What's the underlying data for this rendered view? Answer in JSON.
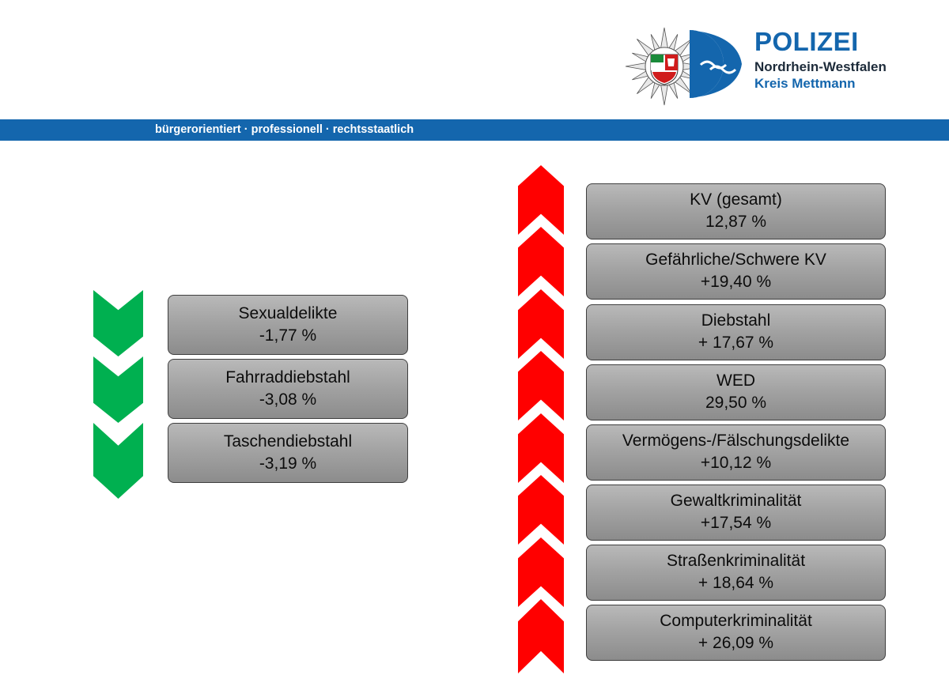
{
  "header": {
    "title": "POLIZEI",
    "subtitle_line1": "Nordrhein-Westfalen",
    "subtitle_line2": "Kreis Mettmann",
    "slogan": "bürgerorientiert · professionell · rechtsstaatlich",
    "logo_icon": "police-star-icon",
    "colors": {
      "brand_blue": "#1466ad",
      "decrease": "#00b050",
      "increase": "#ff0000"
    }
  },
  "decreases": [
    {
      "label": "Sexualdelikte",
      "value": "-1,77 %"
    },
    {
      "label": "Fahrraddiebstahl",
      "value": "-3,08 %"
    },
    {
      "label": "Taschendiebstahl",
      "value": "-3,19 %"
    }
  ],
  "increases": [
    {
      "label": "KV (gesamt)",
      "value": "12,87 %"
    },
    {
      "label": "Gefährliche/Schwere KV",
      "value": "+19,40 %"
    },
    {
      "label": "Diebstahl",
      "value": "+ 17,67 %"
    },
    {
      "label": "WED",
      "value": "29,50 %"
    },
    {
      "label": "Vermögens-/Fälschungsdelikte",
      "value": "+10,12 %"
    },
    {
      "label": "Gewaltkriminalität",
      "value": "+17,54 %"
    },
    {
      "label": "Straßenkriminalität",
      "value": "+ 18,64 %"
    },
    {
      "label": "Computerkriminalität",
      "value": "+ 26,09 %"
    }
  ]
}
